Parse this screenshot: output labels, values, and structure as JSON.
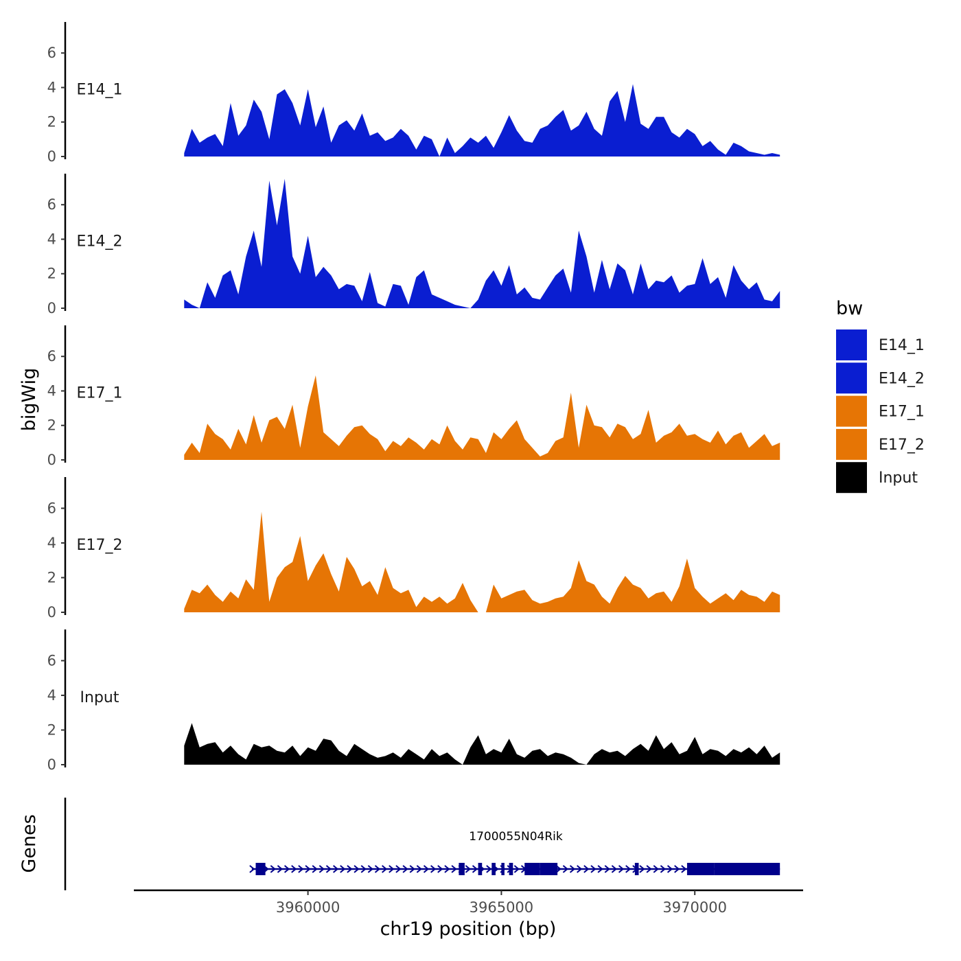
{
  "chart_data": {
    "type": "area",
    "chromosome": "chr19",
    "xlabel": "chr19 position (bp)",
    "ylabel": "bigWig",
    "genes_label": "Genes",
    "xlim": [
      3955500,
      3972800
    ],
    "x_ticks": [
      3960000,
      3965000,
      3970000
    ],
    "x_tick_labels": [
      "3960000",
      "3965000",
      "3970000"
    ],
    "ylim": [
      0,
      7.8
    ],
    "y_ticks": [
      0,
      2,
      4,
      6
    ],
    "y_tick_labels": [
      "0",
      "2",
      "4",
      "6"
    ],
    "legend": {
      "title": "bw",
      "entries": [
        {
          "label": "E14_1",
          "color": "#0a1ed1"
        },
        {
          "label": "E14_2",
          "color": "#0a1ed1"
        },
        {
          "label": "E17_1",
          "color": "#e67505"
        },
        {
          "label": "E17_2",
          "color": "#e67505"
        },
        {
          "label": "Input",
          "color": "#000000"
        }
      ]
    },
    "tracks": [
      {
        "name": "E14_1",
        "color": "#0a1ed1",
        "x": [
          3956800,
          3957000,
          3957200,
          3957400,
          3957600,
          3957800,
          3958000,
          3958200,
          3958400,
          3958600,
          3958800,
          3959000,
          3959200,
          3959400,
          3959600,
          3959800,
          3960000,
          3960200,
          3960400,
          3960600,
          3960800,
          3961000,
          3961200,
          3961400,
          3961600,
          3961800,
          3962000,
          3962200,
          3962400,
          3962600,
          3962800,
          3963000,
          3963200,
          3963400,
          3963600,
          3963800,
          3964000,
          3964200,
          3964400,
          3964600,
          3964800,
          3965000,
          3965200,
          3965400,
          3965600,
          3965800,
          3966000,
          3966200,
          3966400,
          3966600,
          3966800,
          3967000,
          3967200,
          3967400,
          3967600,
          3967800,
          3968000,
          3968200,
          3968400,
          3968600,
          3968800,
          3969000,
          3969200,
          3969400,
          3969600,
          3969800,
          3970000,
          3970200,
          3970400,
          3970600,
          3970800,
          3971000,
          3971200,
          3971400,
          3971600,
          3971800,
          3972000,
          3972200
        ],
        "y": [
          0.2,
          1.6,
          0.8,
          1.1,
          1.3,
          0.6,
          3.1,
          1.2,
          1.8,
          3.3,
          2.6,
          1.0,
          3.6,
          3.9,
          3.1,
          1.8,
          3.9,
          1.7,
          2.9,
          0.8,
          1.8,
          2.1,
          1.5,
          2.5,
          1.2,
          1.4,
          0.9,
          1.1,
          1.6,
          1.2,
          0.4,
          1.2,
          1.0,
          0.0,
          1.1,
          0.2,
          0.6,
          1.1,
          0.8,
          1.2,
          0.5,
          1.4,
          2.4,
          1.5,
          0.9,
          0.8,
          1.6,
          1.8,
          2.3,
          2.7,
          1.5,
          1.8,
          2.6,
          1.6,
          1.2,
          3.2,
          3.8,
          2.0,
          4.2,
          1.9,
          1.6,
          2.3,
          2.3,
          1.4,
          1.1,
          1.6,
          1.3,
          0.6,
          0.9,
          0.4,
          0.1,
          0.8,
          0.6,
          0.3,
          0.2,
          0.1,
          0.2,
          0.1
        ]
      },
      {
        "name": "E14_2",
        "color": "#0a1ed1",
        "x": [
          3956800,
          3957000,
          3957200,
          3957400,
          3957600,
          3957800,
          3958000,
          3958200,
          3958400,
          3958600,
          3958800,
          3959000,
          3959200,
          3959400,
          3959600,
          3959800,
          3960000,
          3960200,
          3960400,
          3960600,
          3960800,
          3961000,
          3961200,
          3961400,
          3961600,
          3961800,
          3962000,
          3962200,
          3962400,
          3962600,
          3962800,
          3963000,
          3963200,
          3963400,
          3963600,
          3963800,
          3964000,
          3964200,
          3964400,
          3964600,
          3964800,
          3965000,
          3965200,
          3965400,
          3965600,
          3965800,
          3966000,
          3966200,
          3966400,
          3966600,
          3966800,
          3967000,
          3967200,
          3967400,
          3967600,
          3967800,
          3968000,
          3968200,
          3968400,
          3968600,
          3968800,
          3969000,
          3969200,
          3969400,
          3969600,
          3969800,
          3970000,
          3970200,
          3970400,
          3970600,
          3970800,
          3971000,
          3971200,
          3971400,
          3971600,
          3971800,
          3972000,
          3972200
        ],
        "y": [
          0.5,
          0.2,
          0.0,
          1.5,
          0.6,
          1.9,
          2.2,
          0.8,
          3.0,
          4.5,
          2.4,
          7.4,
          4.8,
          7.5,
          3.0,
          2.0,
          4.2,
          1.8,
          2.4,
          1.9,
          1.1,
          1.4,
          1.3,
          0.4,
          2.1,
          0.3,
          0.1,
          1.4,
          1.3,
          0.2,
          1.8,
          2.2,
          0.8,
          0.6,
          0.4,
          0.2,
          0.1,
          0.0,
          0.5,
          1.6,
          2.2,
          1.3,
          2.5,
          0.8,
          1.2,
          0.6,
          0.5,
          1.2,
          1.9,
          2.3,
          0.9,
          4.5,
          3.0,
          0.9,
          2.8,
          1.1,
          2.6,
          2.2,
          0.8,
          2.6,
          1.1,
          1.6,
          1.5,
          1.9,
          0.9,
          1.3,
          1.4,
          2.9,
          1.4,
          1.8,
          0.6,
          2.5,
          1.6,
          1.1,
          1.5,
          0.5,
          0.4,
          1.0
        ]
      },
      {
        "name": "E17_1",
        "color": "#e67505",
        "x": [
          3956800,
          3957000,
          3957200,
          3957400,
          3957600,
          3957800,
          3958000,
          3958200,
          3958400,
          3958600,
          3958800,
          3959000,
          3959200,
          3959400,
          3959600,
          3959800,
          3960000,
          3960200,
          3960400,
          3960600,
          3960800,
          3961000,
          3961200,
          3961400,
          3961600,
          3961800,
          3962000,
          3962200,
          3962400,
          3962600,
          3962800,
          3963000,
          3963200,
          3963400,
          3963600,
          3963800,
          3964000,
          3964200,
          3964400,
          3964600,
          3964800,
          3965000,
          3965200,
          3965400,
          3965600,
          3965800,
          3966000,
          3966200,
          3966400,
          3966600,
          3966800,
          3967000,
          3967200,
          3967400,
          3967600,
          3967800,
          3968000,
          3968200,
          3968400,
          3968600,
          3968800,
          3969000,
          3969200,
          3969400,
          3969600,
          3969800,
          3970000,
          3970200,
          3970400,
          3970600,
          3970800,
          3971000,
          3971200,
          3971400,
          3971600,
          3971800,
          3972000,
          3972200
        ],
        "y": [
          0.3,
          1.0,
          0.4,
          2.1,
          1.5,
          1.2,
          0.6,
          1.8,
          0.9,
          2.6,
          1.0,
          2.3,
          2.5,
          1.8,
          3.2,
          0.7,
          3.1,
          4.9,
          1.6,
          1.2,
          0.8,
          1.4,
          1.9,
          2.0,
          1.5,
          1.2,
          0.5,
          1.1,
          0.8,
          1.3,
          1.0,
          0.6,
          1.2,
          0.9,
          2.0,
          1.1,
          0.6,
          1.3,
          1.2,
          0.4,
          1.6,
          1.2,
          1.8,
          2.3,
          1.2,
          0.7,
          0.2,
          0.4,
          1.1,
          1.3,
          3.9,
          0.7,
          3.2,
          2.0,
          1.9,
          1.3,
          2.1,
          1.9,
          1.2,
          1.5,
          2.9,
          1.0,
          1.4,
          1.6,
          2.1,
          1.4,
          1.5,
          1.2,
          1.0,
          1.7,
          0.9,
          1.4,
          1.6,
          0.7,
          1.1,
          1.5,
          0.8,
          1.0
        ]
      },
      {
        "name": "E17_2",
        "color": "#e67505",
        "x": [
          3956800,
          3957000,
          3957200,
          3957400,
          3957600,
          3957800,
          3958000,
          3958200,
          3958400,
          3958600,
          3958800,
          3959000,
          3959200,
          3959400,
          3959600,
          3959800,
          3960000,
          3960200,
          3960400,
          3960600,
          3960800,
          3961000,
          3961200,
          3961400,
          3961600,
          3961800,
          3962000,
          3962200,
          3962400,
          3962600,
          3962800,
          3963000,
          3963200,
          3963400,
          3963600,
          3963800,
          3964000,
          3964200,
          3964400,
          3964600,
          3964800,
          3965000,
          3965200,
          3965400,
          3965600,
          3965800,
          3966000,
          3966200,
          3966400,
          3966600,
          3966800,
          3967000,
          3967200,
          3967400,
          3967600,
          3967800,
          3968000,
          3968200,
          3968400,
          3968600,
          3968800,
          3969000,
          3969200,
          3969400,
          3969600,
          3969800,
          3970000,
          3970200,
          3970400,
          3970600,
          3970800,
          3971000,
          3971200,
          3971400,
          3971600,
          3971800,
          3972000,
          3972200
        ],
        "y": [
          0.2,
          1.3,
          1.1,
          1.6,
          1.0,
          0.6,
          1.2,
          0.8,
          1.9,
          1.3,
          5.8,
          0.6,
          2.0,
          2.6,
          2.9,
          4.4,
          1.8,
          2.7,
          3.4,
          2.2,
          1.2,
          3.2,
          2.5,
          1.5,
          1.8,
          1.0,
          2.6,
          1.4,
          1.1,
          1.3,
          0.3,
          0.9,
          0.6,
          0.9,
          0.5,
          0.8,
          1.7,
          0.7,
          0.0,
          0.0,
          1.6,
          0.8,
          1.0,
          1.2,
          1.3,
          0.7,
          0.5,
          0.6,
          0.8,
          0.9,
          1.4,
          3.0,
          1.8,
          1.6,
          0.9,
          0.5,
          1.4,
          2.1,
          1.6,
          1.4,
          0.8,
          1.1,
          1.2,
          0.6,
          1.5,
          3.1,
          1.4,
          0.9,
          0.5,
          0.8,
          1.1,
          0.7,
          1.3,
          1.0,
          0.9,
          0.6,
          1.2,
          1.0
        ]
      },
      {
        "name": "Input",
        "color": "#000000",
        "x": [
          3956800,
          3957000,
          3957200,
          3957400,
          3957600,
          3957800,
          3958000,
          3958200,
          3958400,
          3958600,
          3958800,
          3959000,
          3959200,
          3959400,
          3959600,
          3959800,
          3960000,
          3960200,
          3960400,
          3960600,
          3960800,
          3961000,
          3961200,
          3961400,
          3961600,
          3961800,
          3962000,
          3962200,
          3962400,
          3962600,
          3962800,
          3963000,
          3963200,
          3963400,
          3963600,
          3963800,
          3964000,
          3964200,
          3964400,
          3964600,
          3964800,
          3965000,
          3965200,
          3965400,
          3965600,
          3965800,
          3966000,
          3966200,
          3966400,
          3966600,
          3966800,
          3967000,
          3967200,
          3967400,
          3967600,
          3967800,
          3968000,
          3968200,
          3968400,
          3968600,
          3968800,
          3969000,
          3969200,
          3969400,
          3969600,
          3969800,
          3970000,
          3970200,
          3970400,
          3970600,
          3970800,
          3971000,
          3971200,
          3971400,
          3971600,
          3971800,
          3972000,
          3972200
        ],
        "y": [
          1.1,
          2.4,
          1.0,
          1.2,
          1.3,
          0.7,
          1.1,
          0.6,
          0.3,
          1.2,
          1.0,
          1.1,
          0.8,
          0.7,
          1.1,
          0.5,
          1.0,
          0.8,
          1.5,
          1.4,
          0.8,
          0.5,
          1.2,
          0.9,
          0.6,
          0.4,
          0.5,
          0.7,
          0.4,
          0.9,
          0.6,
          0.3,
          0.9,
          0.5,
          0.7,
          0.3,
          0.0,
          1.0,
          1.7,
          0.6,
          0.9,
          0.7,
          1.5,
          0.6,
          0.4,
          0.8,
          0.9,
          0.5,
          0.7,
          0.6,
          0.4,
          0.1,
          0.0,
          0.6,
          0.9,
          0.7,
          0.8,
          0.5,
          0.9,
          1.2,
          0.8,
          1.7,
          0.9,
          1.3,
          0.6,
          0.8,
          1.6,
          0.6,
          0.9,
          0.8,
          0.5,
          0.9,
          0.7,
          1.0,
          0.6,
          1.1,
          0.4,
          0.7
        ]
      }
    ],
    "gene": {
      "name": "1700055N04Rik",
      "start": 3958550,
      "end": 3972200,
      "strand": "+",
      "exons": [
        [
          3958650,
          3958900
        ],
        [
          3963900,
          3964050
        ],
        [
          3964400,
          3964500
        ],
        [
          3964750,
          3964850
        ],
        [
          3965000,
          3965080
        ],
        [
          3965200,
          3965300
        ],
        [
          3965600,
          3966000
        ],
        [
          3966000,
          3966450
        ],
        [
          3968450,
          3968550
        ],
        [
          3969800,
          3970500
        ],
        [
          3970500,
          3972200
        ]
      ]
    }
  }
}
